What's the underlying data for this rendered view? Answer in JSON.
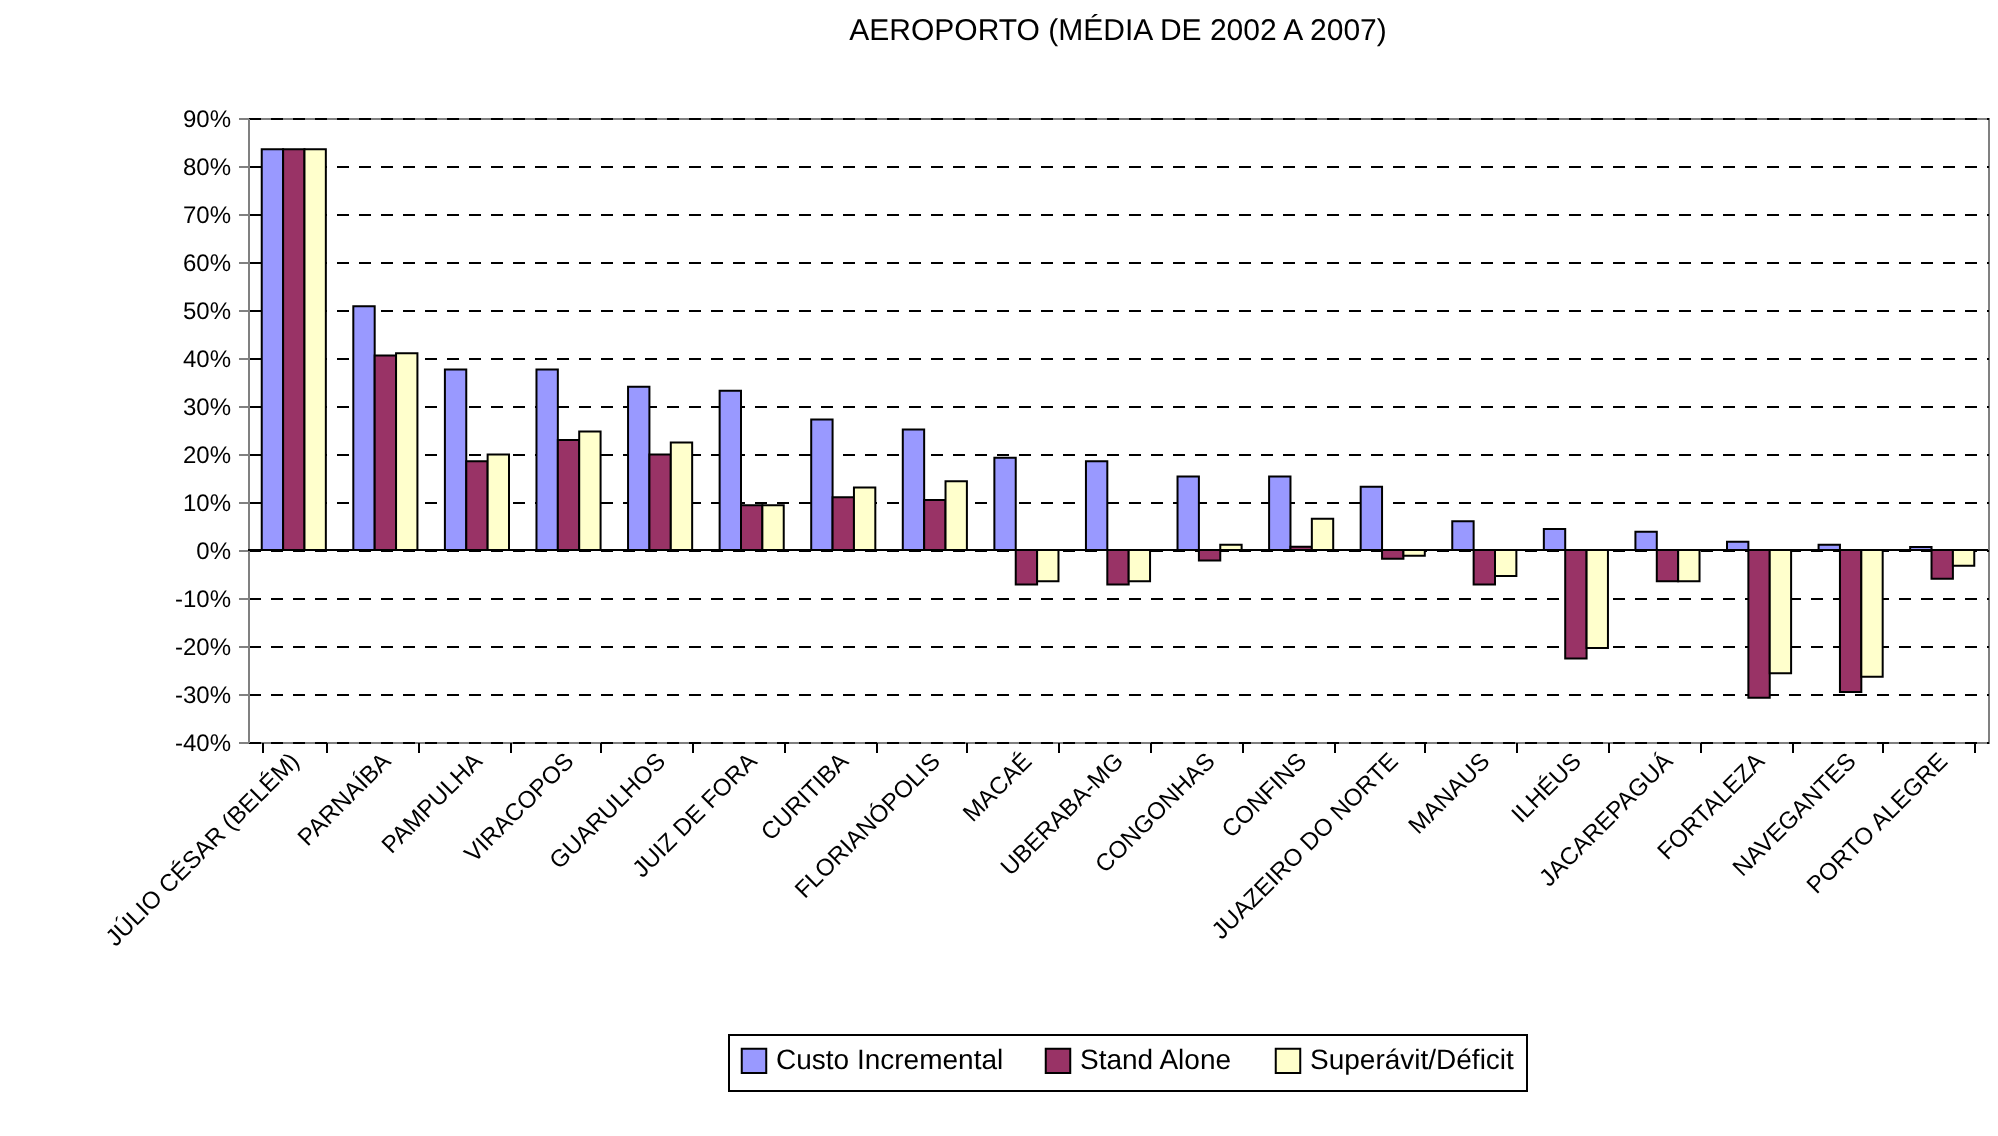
{
  "chart_data": {
    "type": "bar",
    "title": "AEROPORTO (MÉDIA DE 2002 A 2007)",
    "categories": [
      "JÚLIO CÉSAR (BELÉM)",
      "PARNAÍBA",
      "PAMPULHA",
      "VIRACOPOS",
      "GUARULHOS",
      "JUIZ DE FORA",
      "CURITIBA",
      "FLORIANÓPOLIS",
      "MACAÉ",
      "UBERABA-MG",
      "CONGONHAS",
      "CONFINS",
      "JUAZEIRO DO NORTE",
      "MANAUS",
      "ILHÉUS",
      "JACAREPAGUÁ",
      "FORTALEZA",
      "NAVEGANTES",
      "PORTO ALEGRE"
    ],
    "series": [
      {
        "name": "Custo Incremental",
        "color": "#9999ff",
        "values": [
          83.5,
          50.8,
          37.6,
          37.6,
          34,
          33.2,
          27.2,
          25.1,
          19.2,
          18.5,
          15.3,
          15.3,
          13.2,
          6,
          4.4,
          3.8,
          1.7,
          1.1,
          0.6
        ]
      },
      {
        "name": "Stand Alone",
        "color": "#993366",
        "values": [
          83.5,
          40.5,
          18.5,
          22.9,
          19.9,
          9.3,
          11,
          10.4,
          -7.2,
          -7.2,
          -2.2,
          0.7,
          -1.8,
          -7.2,
          -22.6,
          -6.5,
          -30.8,
          -29.6,
          -6
        ]
      },
      {
        "name": "Superávit/Déficit",
        "color": "#ffffcc",
        "values": [
          83.5,
          41,
          19.9,
          24.7,
          22.4,
          9.3,
          13,
          14.3,
          -6.5,
          -6.5,
          1.1,
          6.5,
          -1.2,
          -5.4,
          -20.4,
          -6.5,
          -25.7,
          -26.4,
          -3.3
        ]
      }
    ],
    "ylim": [
      -40,
      90
    ],
    "yticks": [
      {
        "value": -40,
        "label": "-40%"
      },
      {
        "value": -30,
        "label": "-30%"
      },
      {
        "value": -20,
        "label": "-20%"
      },
      {
        "value": -10,
        "label": "-10%"
      },
      {
        "value": 0,
        "label": "0%"
      },
      {
        "value": 10,
        "label": "10%"
      },
      {
        "value": 20,
        "label": "20%"
      },
      {
        "value": 30,
        "label": "30%"
      },
      {
        "value": 40,
        "label": "40%"
      },
      {
        "value": 50,
        "label": "50%"
      },
      {
        "value": 60,
        "label": "60%"
      },
      {
        "value": 70,
        "label": "70%"
      },
      {
        "value": 80,
        "label": "80%"
      },
      {
        "value": 90,
        "label": "90%"
      }
    ],
    "grid": "y",
    "line_style": "dashed",
    "legend": "bottom"
  }
}
